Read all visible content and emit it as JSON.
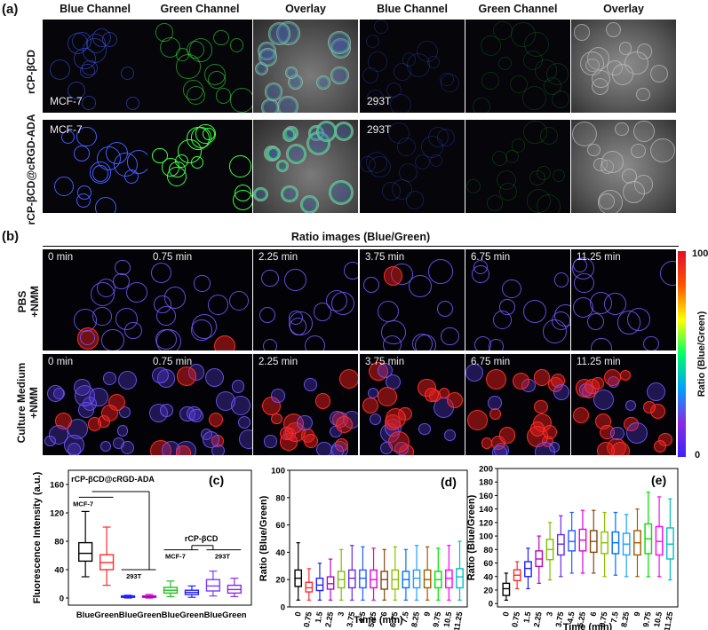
{
  "panel_labels": {
    "a": "(a)",
    "b": "(b)",
    "c": "(c)",
    "d": "(d)",
    "e": "(e)"
  },
  "panel_a": {
    "headers": [
      "Blue Channel",
      "Green Channel",
      "Overlay",
      "Blue Channel",
      "Green Channel",
      "Overlay"
    ],
    "row_labels": [
      "rCP-βCD",
      "rCP-βCD@cRGD-ADA"
    ],
    "cell_lines": {
      "left": "MCF-7",
      "right": "293T"
    }
  },
  "panel_b": {
    "title": "Ratio images (Blue/Green)",
    "times": [
      "0 min",
      "0.75 min",
      "2.25 min",
      "3.75 min",
      "6.75 min",
      "11.25 min"
    ],
    "row_labels": [
      [
        "PBS",
        "+NMM"
      ],
      [
        "Culture Medium",
        "+NMM"
      ]
    ],
    "colorbar": {
      "max": "100",
      "min": "0",
      "label": "Ratio (Blue/Green)",
      "colors": [
        "#3b22ff",
        "#8a2be2",
        "#00a0ff",
        "#00ff66",
        "#ffff00",
        "#ff5500",
        "#e0102a"
      ]
    }
  },
  "chart_data": [
    {
      "type": "box",
      "panel": "c",
      "ylabel": "Fluorescence Intensity (a.u.)",
      "ylim": [
        -10,
        180
      ],
      "yticks": [
        "0",
        "40",
        "80",
        "120",
        "160"
      ],
      "categories": [
        "Blue",
        "Green",
        "Blue",
        "Green",
        "Blue",
        "Green",
        "Blue",
        "Green"
      ],
      "group_labels": {
        "top": "rCP-βCD@cRGD-ADA",
        "mcf7": "MCF-7",
        "t293": "293T",
        "rcp": "rCP-βCD",
        "mcf7_b": "MCF-7",
        "t293_b": "293T"
      },
      "colors": [
        "#000000",
        "#ff2a2a",
        "#2020ff",
        "#c000c0",
        "#1fbf1f",
        "#2020ff",
        "#7a3cff",
        "#8a2be2"
      ],
      "boxes": [
        {
          "min": 30,
          "q1": 52,
          "med": 63,
          "q3": 78,
          "max": 122
        },
        {
          "min": 18,
          "q1": 40,
          "med": 50,
          "q3": 61,
          "max": 100
        },
        {
          "min": 0,
          "q1": 1,
          "med": 2,
          "q3": 3,
          "max": 4
        },
        {
          "min": 0,
          "q1": 1,
          "med": 2,
          "q3": 3,
          "max": 5
        },
        {
          "min": 2,
          "q1": 7,
          "med": 11,
          "q3": 15,
          "max": 24
        },
        {
          "min": 1,
          "q1": 5,
          "med": 8,
          "q3": 11,
          "max": 17
        },
        {
          "min": 3,
          "q1": 10,
          "med": 17,
          "q3": 26,
          "max": 38
        },
        {
          "min": 2,
          "q1": 7,
          "med": 12,
          "q3": 18,
          "max": 28
        }
      ]
    },
    {
      "type": "box",
      "panel": "d",
      "ylabel": "Ratio (Blue/Green)",
      "xlabel": "Time (min)",
      "ylim": [
        0,
        100
      ],
      "yticks": [
        "0",
        "20",
        "40",
        "60",
        "80",
        "100"
      ],
      "categories": [
        "0",
        "0.75",
        "1.5",
        "2.25",
        "3",
        "3.75",
        "4.5",
        "5.25",
        "6",
        "6.75",
        "7.5",
        "8.25",
        "9",
        "9.75",
        "10.5",
        "11.25"
      ],
      "colors": [
        "#000000",
        "#ff2a2a",
        "#2020ff",
        "#c000c0",
        "#7ac000",
        "#6a2be2",
        "#1f5fff",
        "#e000e0",
        "#8b4513",
        "#8fbf00",
        "#0070ff",
        "#20a0ff",
        "#a05a00",
        "#00e000",
        "#ff00ff",
        "#00c0c0"
      ],
      "boxes": [
        {
          "min": 5,
          "q1": 15,
          "med": 21,
          "q3": 27,
          "max": 47
        },
        {
          "min": 5,
          "q1": 11,
          "med": 14,
          "q3": 18,
          "max": 28
        },
        {
          "min": 5,
          "q1": 12,
          "med": 16,
          "q3": 21,
          "max": 32
        },
        {
          "min": 5,
          "q1": 13,
          "med": 17,
          "q3": 22,
          "max": 35
        },
        {
          "min": 5,
          "q1": 14,
          "med": 20,
          "q3": 26,
          "max": 42
        },
        {
          "min": 5,
          "q1": 14,
          "med": 21,
          "q3": 27,
          "max": 45
        },
        {
          "min": 5,
          "q1": 14,
          "med": 21,
          "q3": 27,
          "max": 44
        },
        {
          "min": 5,
          "q1": 14,
          "med": 20,
          "q3": 27,
          "max": 43
        },
        {
          "min": 5,
          "q1": 13,
          "med": 20,
          "q3": 26,
          "max": 42
        },
        {
          "min": 5,
          "q1": 13,
          "med": 20,
          "q3": 27,
          "max": 44
        },
        {
          "min": 5,
          "q1": 14,
          "med": 20,
          "q3": 26,
          "max": 42
        },
        {
          "min": 5,
          "q1": 14,
          "med": 21,
          "q3": 27,
          "max": 45
        },
        {
          "min": 5,
          "q1": 14,
          "med": 20,
          "q3": 27,
          "max": 44
        },
        {
          "min": 5,
          "q1": 14,
          "med": 20,
          "q3": 26,
          "max": 43
        },
        {
          "min": 5,
          "q1": 14,
          "med": 21,
          "q3": 27,
          "max": 45
        },
        {
          "min": 5,
          "q1": 14,
          "med": 22,
          "q3": 28,
          "max": 48
        }
      ]
    },
    {
      "type": "box",
      "panel": "e",
      "ylabel": "Ratio (Blue/Green)",
      "xlabel": "Time (min)",
      "ylim": [
        -5,
        200
      ],
      "yticks": [
        "0",
        "20",
        "40",
        "60",
        "80",
        "100",
        "120",
        "140",
        "160",
        "180",
        "200"
      ],
      "categories": [
        "0",
        "0.75",
        "1.5",
        "2.25",
        "3",
        "3.75",
        "4.5",
        "5.25",
        "6",
        "6.75",
        "7.5",
        "8.25",
        "9",
        "9.75",
        "10.5",
        "11.25"
      ],
      "colors": [
        "#000000",
        "#ff2a2a",
        "#2020ff",
        "#c000c0",
        "#7ac000",
        "#6a2be2",
        "#1f5fff",
        "#e000e0",
        "#8b4513",
        "#8fbf00",
        "#0070ff",
        "#20a0ff",
        "#a05a00",
        "#00e000",
        "#ff00ff",
        "#00c0c0"
      ],
      "boxes": [
        {
          "min": 5,
          "q1": 12,
          "med": 22,
          "q3": 30,
          "max": 45
        },
        {
          "min": 22,
          "q1": 34,
          "med": 42,
          "q3": 50,
          "max": 62
        },
        {
          "min": 22,
          "q1": 40,
          "med": 52,
          "q3": 62,
          "max": 82
        },
        {
          "min": 30,
          "q1": 55,
          "med": 66,
          "q3": 78,
          "max": 100
        },
        {
          "min": 35,
          "q1": 65,
          "med": 80,
          "q3": 95,
          "max": 120
        },
        {
          "min": 40,
          "q1": 72,
          "med": 88,
          "q3": 102,
          "max": 130
        },
        {
          "min": 45,
          "q1": 78,
          "med": 92,
          "q3": 108,
          "max": 135
        },
        {
          "min": 45,
          "q1": 78,
          "med": 94,
          "q3": 110,
          "max": 138
        },
        {
          "min": 45,
          "q1": 76,
          "med": 92,
          "q3": 108,
          "max": 138
        },
        {
          "min": 40,
          "q1": 74,
          "med": 90,
          "q3": 106,
          "max": 135
        },
        {
          "min": 42,
          "q1": 74,
          "med": 90,
          "q3": 106,
          "max": 135
        },
        {
          "min": 40,
          "q1": 72,
          "med": 88,
          "q3": 104,
          "max": 132
        },
        {
          "min": 40,
          "q1": 72,
          "med": 90,
          "q3": 108,
          "max": 140
        },
        {
          "min": 40,
          "q1": 74,
          "med": 96,
          "q3": 118,
          "max": 165
        },
        {
          "min": 40,
          "q1": 72,
          "med": 92,
          "q3": 114,
          "max": 158
        },
        {
          "min": 35,
          "q1": 66,
          "med": 88,
          "q3": 112,
          "max": 155
        }
      ]
    }
  ]
}
